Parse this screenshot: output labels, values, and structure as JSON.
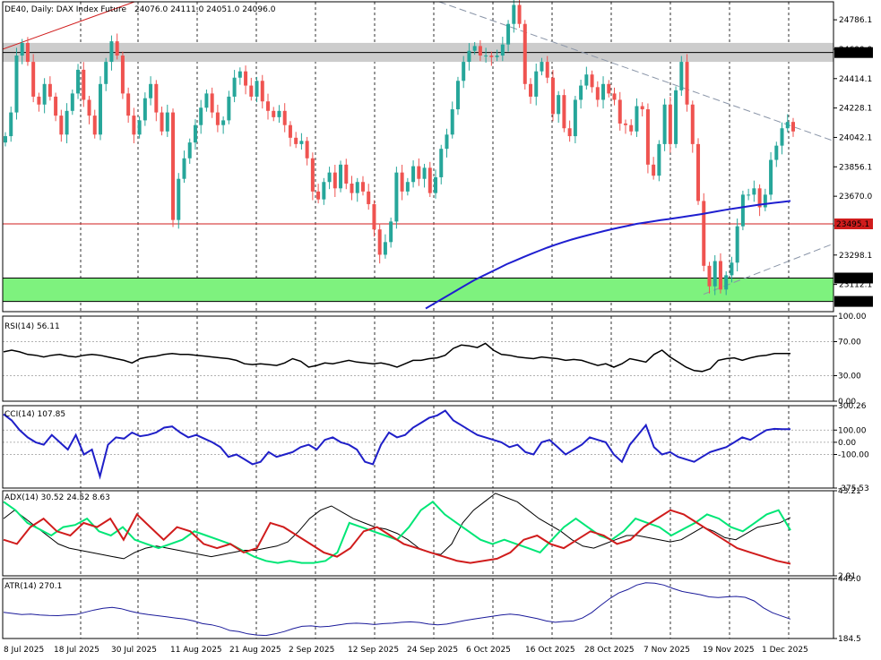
{
  "header": {
    "symbol_line": "DE40, Daily:  DAX Index Future",
    "ohlc_line": "24076.0 24111.0 24051.0 24096.0"
  },
  "colors": {
    "bull": "#26a69a",
    "bear": "#ef5350",
    "price_line": "#d01c1c",
    "resistance_band": "#cccccc",
    "support_band": "#7ef27e",
    "ma_line": "#1f1fd0",
    "ma_line_old": "#7a1fa0",
    "rsi": "#000000",
    "cci": "#1f1fc8",
    "adx": "#000000",
    "plus_di": "#00e676",
    "minus_di": "#d01c1c",
    "atr": "#1a1a9a"
  },
  "chart_data": [
    {
      "type": "candlestick",
      "title": "DE40, Daily:  DAX Index Future",
      "ylim": [
        22940,
        24900
      ],
      "yticks": [
        "24786.1",
        "24600.0",
        "24414.1",
        "24228.1",
        "24042.1",
        "23856.1",
        "23670.0",
        "23484.0",
        "23298.1",
        "23112.1"
      ],
      "price_labels": {
        "resistance": "24578.9",
        "horizontal": "23495.1",
        "support_top": "23152.5",
        "support_bottom": "23004.6"
      },
      "x_tick_labels": [
        "8 Jul 2025",
        "18 Jul 2025",
        "30 Jul 2025",
        "11 Aug 2025",
        "21 Aug 2025",
        "2 Sep 2025",
        "12 Sep 2025",
        "24 Sep 2025",
        "6 Oct 2025",
        "16 Oct 2025",
        "28 Oct 2025",
        "7 Nov 2025",
        "19 Nov 2025",
        "1 Dec 2025"
      ],
      "close_series": [
        24050,
        24200,
        24560,
        24640,
        24520,
        24300,
        24250,
        24380,
        24300,
        24180,
        24060,
        24210,
        24320,
        24470,
        24280,
        24180,
        24060,
        24380,
        24520,
        24650,
        24560,
        24320,
        24180,
        24060,
        24150,
        24290,
        24380,
        24200,
        24080,
        24200,
        23520,
        23780,
        23910,
        24010,
        24120,
        24230,
        24320,
        24200,
        24120,
        24150,
        24300,
        24420,
        24460,
        24370,
        24300,
        24400,
        24270,
        24210,
        24170,
        24210,
        24120,
        24040,
        24000,
        24020,
        23910,
        23700,
        23650,
        23760,
        23820,
        23720,
        23870,
        23750,
        23690,
        23760,
        23700,
        23620,
        23460,
        23300,
        23380,
        23510,
        23820,
        23700,
        23760,
        23860,
        23780,
        23850,
        23690,
        23790,
        23970,
        24060,
        24220,
        24400,
        24520,
        24590,
        24620,
        24560,
        24560,
        24550,
        24560,
        24630,
        24760,
        24880,
        24760,
        24380,
        24300,
        24460,
        24520,
        24420,
        24190,
        24310,
        24100,
        24050,
        24280,
        24370,
        24440,
        24360,
        24280,
        24380,
        24320,
        24280,
        24130,
        24120,
        24080,
        24240,
        24220,
        23870,
        23800,
        24000,
        24250,
        24000,
        24340,
        24520,
        24250,
        24000,
        23640,
        23230,
        23100,
        23260,
        23080,
        23170,
        23250,
        23480,
        23680,
        23680,
        23720,
        23600,
        23680,
        23900,
        23990,
        24100,
        24140,
        24080
      ],
      "ma_series": [
        22960,
        22990,
        23020,
        23050,
        23080,
        23110,
        23140,
        23165,
        23190,
        23215,
        23240,
        23262,
        23284,
        23305,
        23325,
        23345,
        23363,
        23380,
        23396,
        23410,
        23424,
        23437,
        23450,
        23462,
        23473,
        23484,
        23495,
        23503,
        23511,
        23519,
        23526,
        23533,
        23541,
        23549,
        23557,
        23566,
        23575,
        23584,
        23592,
        23600,
        23608,
        23615,
        23622,
        23628,
        23634,
        23640
      ],
      "support_band": [
        23004.6,
        23152.5
      ],
      "resistance_band": [
        24520,
        24640
      ]
    },
    {
      "type": "line",
      "title": "RSI(14) 56.11",
      "ylim": [
        0,
        100
      ],
      "yticks": [
        "100.00",
        "70.00",
        "30.00",
        "0.00"
      ],
      "series": [
        {
          "name": "RSI(14)",
          "values": [
            58,
            60,
            58,
            55,
            54,
            52,
            54,
            55,
            53,
            52,
            54,
            55,
            54,
            52,
            50,
            48,
            45,
            50,
            52,
            53,
            55,
            56,
            55,
            55,
            54,
            53,
            52,
            51,
            50,
            48,
            44,
            43,
            44,
            43,
            42,
            45,
            50,
            47,
            40,
            42,
            45,
            44,
            46,
            48,
            46,
            45,
            44,
            45,
            43,
            40,
            44,
            48,
            48,
            50,
            51,
            54,
            62,
            66,
            65,
            63,
            68,
            60,
            55,
            54,
            52,
            51,
            50,
            52,
            51,
            50,
            48,
            49,
            48,
            45,
            42,
            44,
            40,
            44,
            50,
            48,
            46,
            55,
            60,
            52,
            46,
            40,
            36,
            35,
            38,
            48,
            50,
            51,
            48,
            51,
            53,
            54,
            56,
            56,
            56
          ]
        }
      ]
    },
    {
      "type": "line",
      "title": "CCI(14) 107.85",
      "ylim": [
        -375.53,
        300.26
      ],
      "yticks": [
        "300.26",
        "100.00",
        "0.00",
        "-100.00",
        "-375.53"
      ],
      "series": [
        {
          "name": "CCI(14)",
          "values": [
            230,
            180,
            100,
            40,
            0,
            -20,
            60,
            0,
            -60,
            60,
            -100,
            -60,
            -280,
            -20,
            40,
            30,
            80,
            50,
            60,
            80,
            120,
            130,
            80,
            40,
            60,
            30,
            0,
            -40,
            -120,
            -100,
            -140,
            -180,
            -160,
            -80,
            -120,
            -100,
            -80,
            -40,
            -20,
            -60,
            20,
            40,
            0,
            -20,
            -60,
            -160,
            -180,
            -20,
            80,
            40,
            60,
            120,
            160,
            200,
            220,
            260,
            180,
            140,
            100,
            60,
            40,
            20,
            0,
            -40,
            -20,
            -80,
            -100,
            0,
            20,
            -40,
            -100,
            -60,
            -20,
            40,
            20,
            0,
            -100,
            -160,
            -20,
            60,
            140,
            -40,
            -100,
            -80,
            -120,
            -140,
            -160,
            -120,
            -80,
            -60,
            -40,
            0,
            40,
            20,
            60,
            100,
            110,
            108,
            108
          ]
        }
      ]
    },
    {
      "type": "line",
      "title": "ADX(14) 30.52 24.52 8.63",
      "ylim": [
        2.91,
        43.21
      ],
      "yticks": [
        "43.21",
        "2.91"
      ],
      "series": [
        {
          "name": "ADX(14)",
          "values": [
            30,
            34,
            30,
            26,
            22,
            18,
            16,
            15,
            14,
            13,
            12,
            11,
            14,
            16,
            17,
            16,
            15,
            14,
            13,
            12,
            13,
            14,
            15,
            15,
            16,
            17,
            19,
            24,
            30,
            34,
            36,
            33,
            30,
            28,
            26,
            25,
            23,
            20,
            16,
            14,
            13,
            18,
            28,
            34,
            38,
            42,
            40,
            38,
            34,
            30,
            27,
            24,
            20,
            17,
            16,
            18,
            20,
            22,
            22,
            21,
            20,
            19,
            20,
            23,
            26,
            24,
            21,
            20,
            23,
            26,
            27,
            28,
            30.52
          ]
        },
        {
          "name": "+DI",
          "values": [
            38,
            34,
            28,
            25,
            22,
            26,
            27,
            30,
            24,
            22,
            26,
            20,
            18,
            16,
            18,
            20,
            24,
            22,
            20,
            18,
            15,
            12,
            10,
            9,
            10,
            9,
            9,
            10,
            14,
            28,
            26,
            24,
            22,
            20,
            26,
            34,
            38,
            32,
            28,
            24,
            20,
            18,
            20,
            18,
            16,
            14,
            20,
            26,
            30,
            26,
            22,
            20,
            24,
            30,
            28,
            26,
            22,
            25,
            28,
            32,
            30,
            26,
            24,
            28,
            32,
            34,
            24.52
          ]
        },
        {
          "name": "-DI",
          "values": [
            20,
            18,
            26,
            30,
            24,
            22,
            28,
            26,
            30,
            20,
            32,
            26,
            20,
            26,
            24,
            18,
            16,
            18,
            14,
            16,
            28,
            26,
            22,
            18,
            14,
            12,
            16,
            24,
            26,
            22,
            18,
            16,
            14,
            12,
            10,
            9,
            10,
            11,
            14,
            20,
            22,
            18,
            16,
            20,
            24,
            22,
            18,
            20,
            26,
            30,
            34,
            32,
            28,
            24,
            20,
            16,
            14,
            12,
            10,
            8.63
          ]
        }
      ]
    },
    {
      "type": "line",
      "title": "ATR(14) 270.1",
      "ylim": [
        184.5,
        449.0
      ],
      "yticks": [
        "449.0",
        "184.5"
      ],
      "series": [
        {
          "name": "ATR(14)",
          "values": [
            300,
            295,
            290,
            292,
            288,
            286,
            285,
            288,
            290,
            300,
            310,
            318,
            322,
            316,
            305,
            296,
            290,
            285,
            280,
            275,
            270,
            262,
            250,
            245,
            235,
            220,
            215,
            205,
            200,
            198,
            205,
            215,
            228,
            238,
            240,
            236,
            238,
            244,
            250,
            252,
            250,
            246,
            250,
            252,
            256,
            258,
            255,
            248,
            245,
            248,
            256,
            264,
            270,
            276,
            282,
            288,
            292,
            288,
            280,
            272,
            262,
            256,
            260,
            262,
            275,
            298,
            330,
            360,
            385,
            400,
            420,
            430,
            428,
            420,
            405,
            392,
            385,
            378,
            368,
            365,
            368,
            370,
            366,
            350,
            320,
            298,
            284,
            270.1
          ]
        }
      ]
    }
  ]
}
